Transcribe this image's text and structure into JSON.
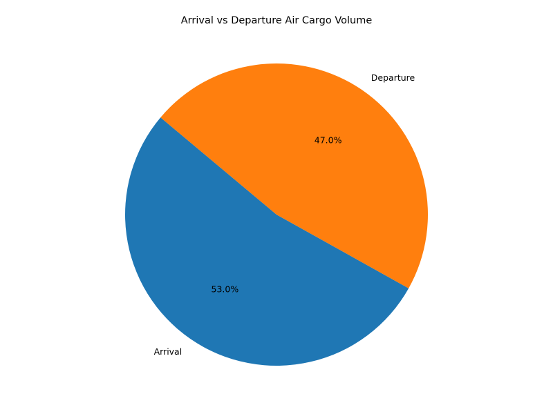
{
  "chart_data": {
    "type": "pie",
    "title": "Arrival vs Departure Air Cargo Volume",
    "slices": [
      {
        "label": "Arrival",
        "percent": 53.0,
        "percent_label": "53.0%",
        "color": "#1f77b4"
      },
      {
        "label": "Departure",
        "percent": 47.0,
        "percent_label": "47.0%",
        "color": "#ff7f0e"
      }
    ],
    "start_angle_deg": 140,
    "direction": "counterclockwise",
    "legend": "none"
  }
}
